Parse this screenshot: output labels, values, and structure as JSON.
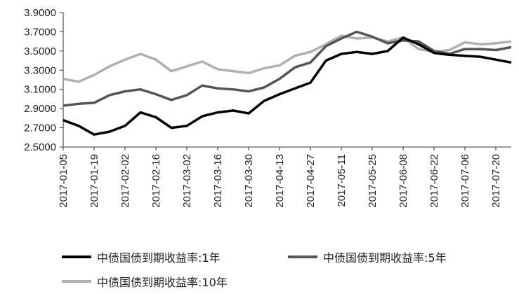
{
  "chart_data": {
    "type": "line",
    "title": "",
    "xlabel": "",
    "ylabel": "",
    "ylim": [
      2.5,
      3.9
    ],
    "yticks": [
      "3.9000",
      "3.7000",
      "3.5000",
      "3.3000",
      "3.1000",
      "2.9000",
      "2.7000",
      "2.5000"
    ],
    "xticks": [
      "2017-01-05",
      "2017-01-19",
      "2017-02-02",
      "2017-02-16",
      "2017-03-02",
      "2017-03-16",
      "2017-03-30",
      "2017-04-13",
      "2017-04-27",
      "2017-05-11",
      "2017-05-25",
      "2017-06-08",
      "2017-06-22",
      "2017-07-06",
      "2017-07-20"
    ],
    "grid": false,
    "legend_position": "bottom",
    "x": [
      "2017-01-05",
      "2017-01-12",
      "2017-01-19",
      "2017-01-26",
      "2017-02-02",
      "2017-02-09",
      "2017-02-16",
      "2017-02-23",
      "2017-03-02",
      "2017-03-09",
      "2017-03-16",
      "2017-03-23",
      "2017-03-30",
      "2017-04-06",
      "2017-04-13",
      "2017-04-20",
      "2017-04-27",
      "2017-05-04",
      "2017-05-11",
      "2017-05-18",
      "2017-05-25",
      "2017-06-01",
      "2017-06-08",
      "2017-06-15",
      "2017-06-22",
      "2017-06-29",
      "2017-07-06",
      "2017-07-13",
      "2017-07-20",
      "2017-07-27"
    ],
    "series": [
      {
        "name": "中债国债到期收益率:1年",
        "color": "#000000",
        "values": [
          2.78,
          2.72,
          2.63,
          2.66,
          2.72,
          2.86,
          2.81,
          2.7,
          2.72,
          2.82,
          2.86,
          2.88,
          2.85,
          2.98,
          3.05,
          3.11,
          3.17,
          3.4,
          3.47,
          3.49,
          3.47,
          3.5,
          3.64,
          3.57,
          3.48,
          3.46,
          3.45,
          3.44,
          3.41,
          3.38
        ]
      },
      {
        "name": "中债国债到期收益率:5年",
        "color": "#555555",
        "values": [
          2.93,
          2.95,
          2.96,
          3.04,
          3.08,
          3.1,
          3.05,
          2.99,
          3.04,
          3.14,
          3.11,
          3.1,
          3.08,
          3.12,
          3.21,
          3.33,
          3.38,
          3.55,
          3.63,
          3.7,
          3.65,
          3.58,
          3.61,
          3.6,
          3.5,
          3.47,
          3.52,
          3.52,
          3.51,
          3.54
        ]
      },
      {
        "name": "中债国债到期收益率:10年",
        "color": "#b0b0b0",
        "values": [
          3.21,
          3.18,
          3.25,
          3.34,
          3.41,
          3.47,
          3.41,
          3.29,
          3.34,
          3.39,
          3.31,
          3.29,
          3.27,
          3.32,
          3.35,
          3.45,
          3.49,
          3.57,
          3.66,
          3.63,
          3.64,
          3.6,
          3.64,
          3.52,
          3.49,
          3.51,
          3.59,
          3.57,
          3.58,
          3.6
        ]
      }
    ]
  }
}
